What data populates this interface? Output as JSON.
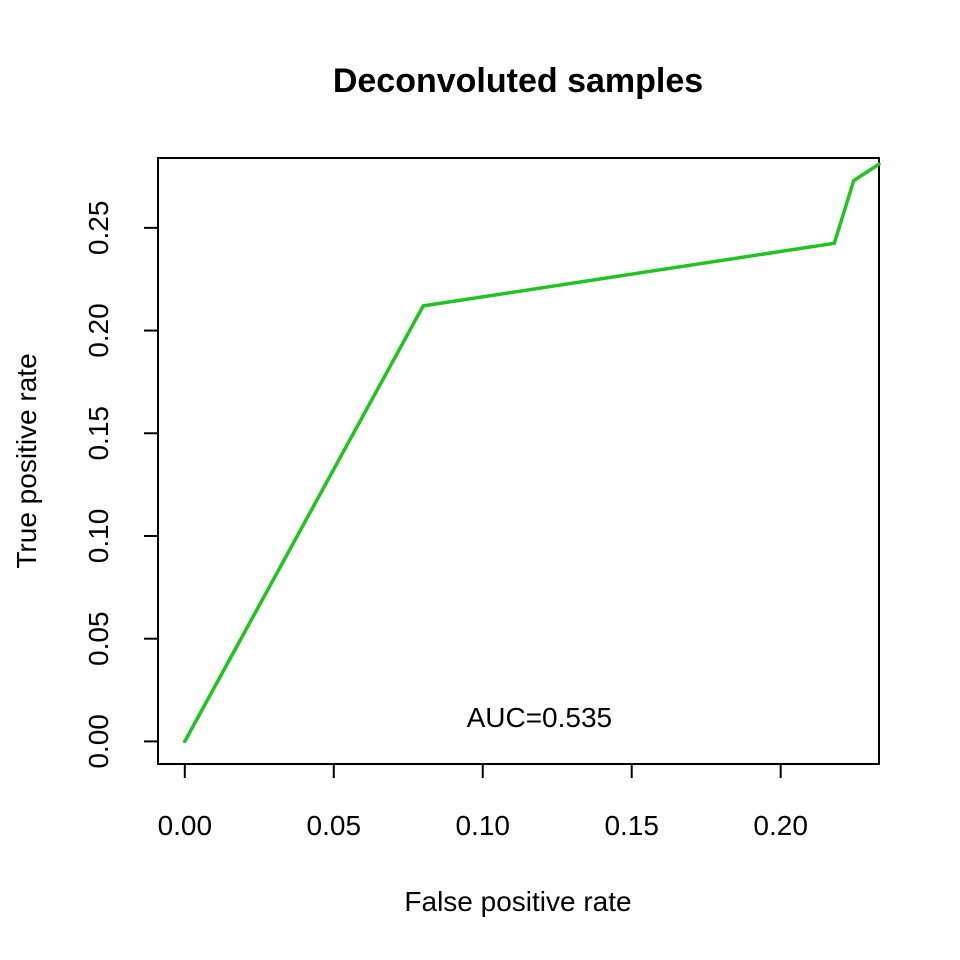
{
  "chart_data": {
    "type": "line",
    "title": "Deconvoluted samples",
    "xlabel": "False positive rate",
    "ylabel": "True positive rate",
    "xlim": [
      -0.009,
      0.233
    ],
    "ylim": [
      -0.011,
      0.284
    ],
    "x_ticks": [
      "0.00",
      "0.05",
      "0.10",
      "0.15",
      "0.20"
    ],
    "y_ticks": [
      "0.00",
      "0.05",
      "0.10",
      "0.15",
      "0.20",
      "0.25"
    ],
    "series": [
      {
        "color": "#1fc41f",
        "x": [
          0.0,
          0.08,
          0.218,
          0.2245,
          0.233
        ],
        "y": [
          0.0,
          0.212,
          0.2425,
          0.273,
          0.281
        ]
      }
    ],
    "annotation": {
      "text": "AUC=0.535",
      "x": 0.119,
      "y": 0.007
    },
    "grid": false,
    "legend": "none"
  }
}
